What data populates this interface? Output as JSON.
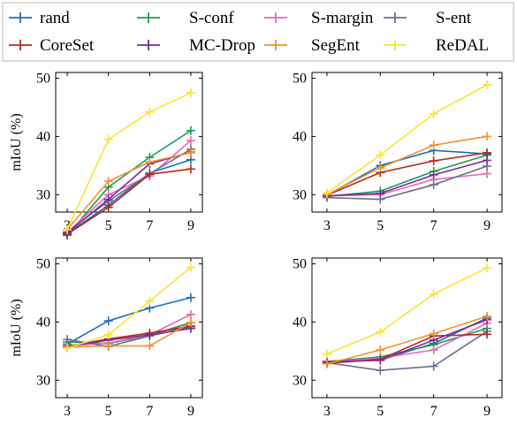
{
  "legend": {
    "position": "top",
    "entries": [
      {
        "name": "rand",
        "color": "#1f6fb4"
      },
      {
        "name": "S-conf",
        "color": "#1a9e50"
      },
      {
        "name": "S-margin",
        "color": "#e86ab2"
      },
      {
        "name": "S-ent",
        "color": "#6b6f8f"
      },
      {
        "name": "CoreSet",
        "color": "#b32b1b"
      },
      {
        "name": "MC-Drop",
        "color": "#7b2a9e"
      },
      {
        "name": "SegEnt",
        "color": "#f2922c"
      },
      {
        "name": "ReDAL",
        "color": "#f7e437"
      }
    ]
  },
  "chart_data": [
    {
      "type": "line",
      "ylabel": "mIoU (%)",
      "x": [
        3,
        5,
        7,
        9
      ],
      "ylim": [
        27,
        51
      ],
      "yticks": [
        30,
        40,
        50
      ],
      "series": [
        {
          "name": "rand",
          "values": [
            23.3,
            28.2,
            33.7,
            36.0
          ]
        },
        {
          "name": "S-conf",
          "values": [
            23.0,
            31.3,
            36.4,
            41.0
          ]
        },
        {
          "name": "S-margin",
          "values": [
            23.5,
            30.0,
            33.2,
            39.3
          ]
        },
        {
          "name": "S-ent",
          "values": [
            23.6,
            28.9,
            33.6,
            37.8
          ]
        },
        {
          "name": "CoreSet",
          "values": [
            23.2,
            27.8,
            33.5,
            34.4
          ]
        },
        {
          "name": "MC-Drop",
          "values": [
            23.4,
            29.2,
            35.3,
            37.3
          ]
        },
        {
          "name": "SegEnt",
          "values": [
            24.0,
            32.3,
            35.6,
            37.2
          ]
        },
        {
          "name": "ReDAL",
          "values": [
            24.0,
            39.5,
            44.2,
            47.5
          ]
        }
      ]
    },
    {
      "type": "line",
      "ylabel": "",
      "x": [
        3,
        5,
        7,
        9
      ],
      "ylim": [
        27,
        51
      ],
      "yticks": [
        30,
        40,
        50
      ],
      "series": [
        {
          "name": "rand",
          "values": [
            29.9,
            35.0,
            37.6,
            37.0
          ]
        },
        {
          "name": "S-conf",
          "values": [
            29.7,
            30.6,
            34.0,
            36.8
          ]
        },
        {
          "name": "S-margin",
          "values": [
            29.8,
            30.0,
            32.6,
            33.6
          ]
        },
        {
          "name": "S-ent",
          "values": [
            29.5,
            29.2,
            31.7,
            34.9
          ]
        },
        {
          "name": "CoreSet",
          "values": [
            29.9,
            33.8,
            35.8,
            37.2
          ]
        },
        {
          "name": "MC-Drop",
          "values": [
            29.8,
            30.2,
            33.4,
            35.9
          ]
        },
        {
          "name": "SegEnt",
          "values": [
            30.0,
            34.6,
            38.5,
            40.0
          ]
        },
        {
          "name": "ReDAL",
          "values": [
            30.3,
            36.8,
            43.9,
            48.9
          ]
        }
      ]
    },
    {
      "type": "line",
      "ylabel": "mIoU (%)",
      "x": [
        3,
        5,
        7,
        9
      ],
      "ylim": [
        27,
        51
      ],
      "yticks": [
        30,
        40,
        50
      ],
      "series": [
        {
          "name": "rand",
          "values": [
            36.2,
            40.2,
            42.4,
            44.2
          ]
        },
        {
          "name": "S-conf",
          "values": [
            36.6,
            36.3,
            37.7,
            39.9
          ]
        },
        {
          "name": "S-margin",
          "values": [
            35.9,
            36.4,
            37.8,
            41.3
          ]
        },
        {
          "name": "S-ent",
          "values": [
            37.0,
            35.8,
            37.6,
            39.2
          ]
        },
        {
          "name": "CoreSet",
          "values": [
            35.8,
            37.1,
            38.1,
            39.3
          ]
        },
        {
          "name": "MC-Drop",
          "values": [
            35.8,
            36.9,
            37.8,
            38.9
          ]
        },
        {
          "name": "SegEnt",
          "values": [
            35.7,
            35.9,
            35.9,
            39.9
          ]
        },
        {
          "name": "ReDAL",
          "values": [
            35.5,
            37.8,
            43.6,
            49.4
          ]
        }
      ]
    },
    {
      "type": "line",
      "ylabel": "",
      "x": [
        3,
        5,
        7,
        9
      ],
      "ylim": [
        27,
        51
      ],
      "yticks": [
        30,
        40,
        50
      ],
      "series": [
        {
          "name": "rand",
          "values": [
            33.0,
            33.5,
            36.3,
            40.7
          ]
        },
        {
          "name": "S-conf",
          "values": [
            33.2,
            34.0,
            36.1,
            38.9
          ]
        },
        {
          "name": "S-margin",
          "values": [
            33.1,
            33.8,
            35.2,
            39.8
          ]
        },
        {
          "name": "S-ent",
          "values": [
            33.0,
            31.7,
            32.4,
            38.4
          ]
        },
        {
          "name": "CoreSet",
          "values": [
            32.9,
            33.6,
            37.6,
            37.9
          ]
        },
        {
          "name": "MC-Drop",
          "values": [
            33.2,
            33.4,
            36.9,
            40.4
          ]
        },
        {
          "name": "SegEnt",
          "values": [
            32.8,
            35.2,
            38.0,
            41.0
          ]
        },
        {
          "name": "ReDAL",
          "values": [
            34.5,
            38.3,
            44.8,
            49.3
          ]
        }
      ]
    }
  ]
}
